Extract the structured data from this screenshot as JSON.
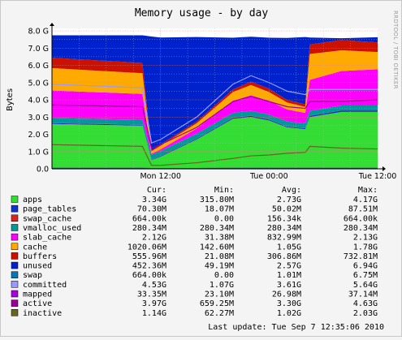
{
  "chart_data": {
    "type": "area",
    "title": "Memory usage - by day",
    "ylabel": "Bytes",
    "side_label": "RRDTOOL / TOBI OETIKER",
    "ylim": [
      0,
      8.0
    ],
    "yunit": "G",
    "y_ticks": [
      "0.0",
      "1.0 G",
      "2.0 G",
      "3.0 G",
      "4.0 G",
      "5.0 G",
      "6.0 G",
      "7.0 G",
      "8.0 G"
    ],
    "x_ticks": [
      {
        "label": "Mon 12:00",
        "t": 12
      },
      {
        "label": "Tue 00:00",
        "t": 24
      },
      {
        "label": "Tue 12:00",
        "t": 36
      }
    ],
    "x_range_hours": [
      0,
      36
    ],
    "colors": {
      "apps": "#33dd33",
      "page_tables": "#1133cc",
      "swap_cache": "#dd2222",
      "vmalloc_used": "#009999",
      "slab_cache": "#ff00ff",
      "cache": "#ffaa00",
      "buffers": "#cc1100",
      "unused": "#0022cc",
      "swap": "#0077bb",
      "committed": "#9999ff",
      "mapped": "#aa00dd",
      "active": "#990099",
      "inactive": "#666622"
    },
    "series_points": {
      "x": [
        0,
        10,
        11,
        12,
        16,
        20,
        22,
        24,
        26,
        28,
        28.5,
        32,
        36
      ],
      "stack": [
        {
          "name": "apps",
          "values": [
            2.6,
            2.5,
            0.5,
            0.7,
            1.7,
            2.9,
            3.0,
            2.8,
            2.4,
            2.3,
            3.0,
            3.3,
            3.3
          ]
        },
        {
          "name": "page_tables",
          "values": [
            0.05,
            0.05,
            0.03,
            0.04,
            0.05,
            0.06,
            0.07,
            0.06,
            0.05,
            0.05,
            0.07,
            0.08,
            0.08
          ]
        },
        {
          "name": "swap_cache",
          "values": [
            0.01,
            0.01,
            0.01,
            0.01,
            0.01,
            0.01,
            0.01,
            0.01,
            0.01,
            0.01,
            0.01,
            0.01,
            0.01
          ]
        },
        {
          "name": "vmalloc_used",
          "values": [
            0.28,
            0.28,
            0.28,
            0.28,
            0.28,
            0.28,
            0.28,
            0.28,
            0.28,
            0.28,
            0.28,
            0.28,
            0.28
          ]
        },
        {
          "name": "slab_cache",
          "values": [
            1.6,
            1.5,
            0.05,
            0.1,
            0.3,
            0.7,
            0.9,
            0.8,
            0.7,
            0.6,
            1.8,
            2.0,
            2.1
          ]
        },
        {
          "name": "cache",
          "values": [
            1.3,
            1.2,
            0.15,
            0.2,
            0.3,
            0.5,
            0.6,
            0.5,
            0.4,
            0.35,
            1.5,
            1.2,
            1.0
          ]
        },
        {
          "name": "buffers",
          "values": [
            0.6,
            0.6,
            0.05,
            0.08,
            0.1,
            0.15,
            0.2,
            0.2,
            0.15,
            0.15,
            0.55,
            0.6,
            0.56
          ]
        },
        {
          "name": "unused",
          "values": [
            1.3,
            1.6,
            6.6,
            6.2,
            4.9,
            3.0,
            2.6,
            2.95,
            3.6,
            3.9,
            0.4,
            0.1,
            0.3
          ]
        }
      ],
      "lines": [
        {
          "name": "committed",
          "values": [
            4.9,
            4.7,
            1.5,
            1.7,
            3.0,
            4.9,
            5.4,
            5.0,
            4.5,
            4.3,
            4.6,
            4.6,
            4.6
          ]
        },
        {
          "name": "active",
          "values": [
            3.7,
            3.6,
            1.2,
            1.4,
            2.4,
            3.9,
            4.2,
            3.9,
            3.6,
            3.5,
            3.9,
            3.9,
            4.0
          ]
        },
        {
          "name": "inactive",
          "values": [
            1.4,
            1.3,
            0.2,
            0.2,
            0.35,
            0.6,
            0.75,
            0.8,
            0.9,
            0.95,
            1.3,
            1.2,
            1.15
          ]
        },
        {
          "name": "swap",
          "values": [
            0,
            0,
            0,
            0,
            0,
            0,
            0,
            0,
            0,
            0,
            0,
            0,
            0
          ]
        },
        {
          "name": "mapped",
          "values": [
            0.03,
            0.03,
            0.02,
            0.02,
            0.02,
            0.03,
            0.03,
            0.03,
            0.03,
            0.03,
            0.03,
            0.03,
            0.03
          ]
        }
      ]
    }
  },
  "legend": {
    "headers": {
      "cur": "Cur:",
      "min": "Min:",
      "avg": "Avg:",
      "max": "Max:"
    },
    "rows": [
      {
        "name": "apps",
        "cur": "3.34G",
        "min": "315.80M",
        "avg": "2.73G",
        "max": "4.17G"
      },
      {
        "name": "page_tables",
        "cur": "70.30M",
        "min": "18.07M",
        "avg": "50.02M",
        "max": "87.51M"
      },
      {
        "name": "swap_cache",
        "cur": "664.00k",
        "min": "0.00",
        "avg": "156.34k",
        "max": "664.00k"
      },
      {
        "name": "vmalloc_used",
        "cur": "280.34M",
        "min": "280.34M",
        "avg": "280.34M",
        "max": "280.34M"
      },
      {
        "name": "slab_cache",
        "cur": "2.12G",
        "min": "31.38M",
        "avg": "832.99M",
        "max": "2.13G"
      },
      {
        "name": "cache",
        "cur": "1020.06M",
        "min": "142.60M",
        "avg": "1.05G",
        "max": "1.78G"
      },
      {
        "name": "buffers",
        "cur": "555.96M",
        "min": "21.08M",
        "avg": "306.86M",
        "max": "732.81M"
      },
      {
        "name": "unused",
        "cur": "452.36M",
        "min": "49.19M",
        "avg": "2.57G",
        "max": "6.94G"
      },
      {
        "name": "swap",
        "cur": "664.00k",
        "min": "0.00",
        "avg": "1.01M",
        "max": "6.75M"
      },
      {
        "name": "committed",
        "cur": "4.53G",
        "min": "1.07G",
        "avg": "3.61G",
        "max": "5.64G"
      },
      {
        "name": "mapped",
        "cur": "33.35M",
        "min": "23.10M",
        "avg": "26.98M",
        "max": "37.14M"
      },
      {
        "name": "active",
        "cur": "3.97G",
        "min": "659.25M",
        "avg": "3.30G",
        "max": "4.63G"
      },
      {
        "name": "inactive",
        "cur": "1.14G",
        "min": "62.27M",
        "avg": "1.02G",
        "max": "2.03G"
      }
    ],
    "last_update": "Last update:  Tue Sep  7 12:35:06 2010"
  }
}
